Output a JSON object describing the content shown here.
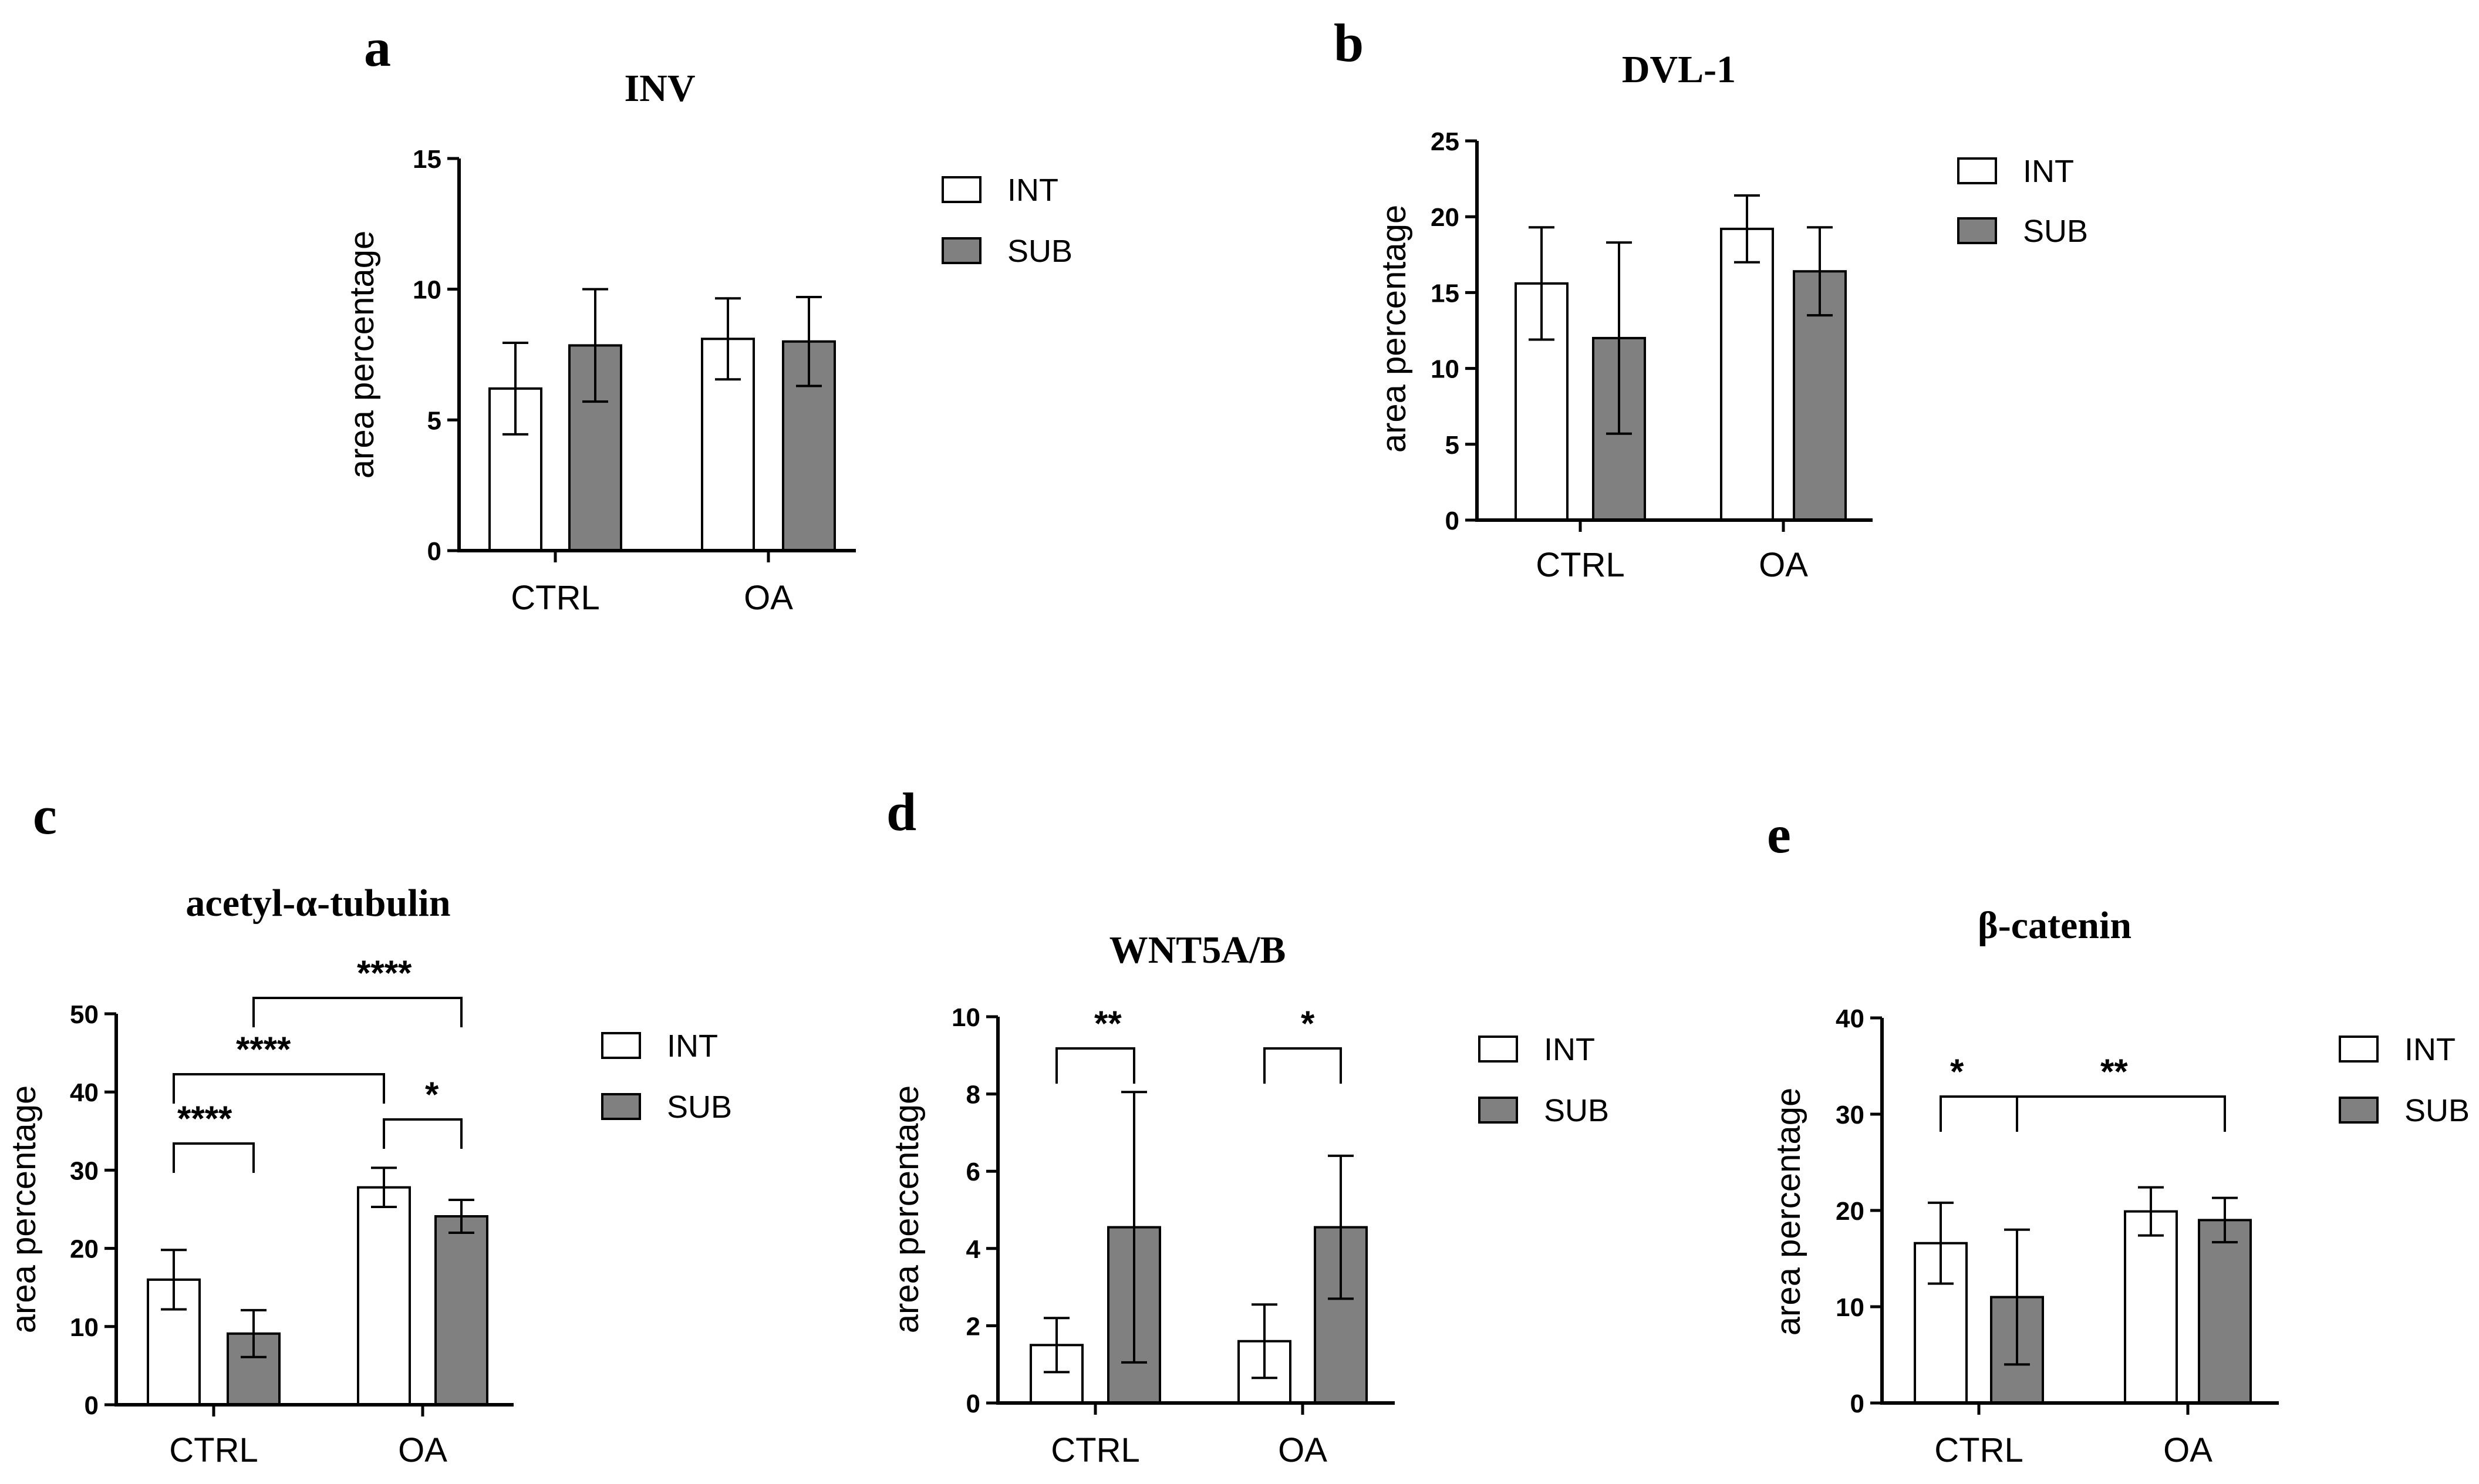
{
  "colors": {
    "int_fill": "#ffffff",
    "sub_fill": "#808080",
    "stroke": "#000000"
  },
  "chart_data": [
    {
      "panel": "a",
      "title": "INV",
      "type": "bar",
      "categories": [
        "CTRL",
        "OA"
      ],
      "series": [
        {
          "name": "INT",
          "values": [
            6.2,
            8.1
          ],
          "error": [
            1.75,
            1.55
          ]
        },
        {
          "name": "SUB",
          "values": [
            7.85,
            8.0
          ],
          "error": [
            2.15,
            1.7
          ]
        }
      ],
      "ylabel": "area percentage",
      "ylim": [
        0,
        15
      ],
      "yticks": [
        0,
        5,
        10,
        15
      ],
      "legend": "right",
      "significance": []
    },
    {
      "panel": "b",
      "title": "DVL-1",
      "type": "bar",
      "categories": [
        "CTRL",
        "OA"
      ],
      "series": [
        {
          "name": "INT",
          "values": [
            15.6,
            19.2
          ],
          "error": [
            3.7,
            2.2
          ]
        },
        {
          "name": "SUB",
          "values": [
            12.0,
            16.4
          ],
          "error": [
            6.3,
            2.9
          ]
        }
      ],
      "ylabel": "area percentage",
      "ylim": [
        0,
        25
      ],
      "yticks": [
        0,
        5,
        10,
        15,
        20,
        25
      ],
      "legend": "right",
      "significance": []
    },
    {
      "panel": "c",
      "title": "acetyl-α-tubulin",
      "type": "bar",
      "categories": [
        "CTRL",
        "OA"
      ],
      "series": [
        {
          "name": "INT",
          "values": [
            16.0,
            27.8
          ],
          "error": [
            3.8,
            2.5
          ]
        },
        {
          "name": "SUB",
          "values": [
            9.1,
            24.1
          ],
          "error": [
            3.0,
            2.1
          ]
        }
      ],
      "ylabel": "area percentage",
      "ylim": [
        0,
        50
      ],
      "yticks": [
        0,
        10,
        20,
        30,
        40,
        50
      ],
      "legend": "right",
      "significance": [
        {
          "from": [
            0,
            0
          ],
          "to": [
            0,
            1
          ],
          "label": "****"
        },
        {
          "from": [
            0,
            0
          ],
          "to": [
            1,
            0
          ],
          "label": "****"
        },
        {
          "from": [
            1,
            0
          ],
          "to": [
            1,
            1
          ],
          "label": "*"
        },
        {
          "from": [
            0,
            1
          ],
          "to": [
            1,
            1
          ],
          "label": "****"
        }
      ]
    },
    {
      "panel": "d",
      "title": "WNT5A/B",
      "type": "bar",
      "categories": [
        "CTRL",
        "OA"
      ],
      "series": [
        {
          "name": "INT",
          "values": [
            1.5,
            1.6
          ],
          "error": [
            0.7,
            0.95
          ]
        },
        {
          "name": "SUB",
          "values": [
            4.55,
            4.55
          ],
          "error": [
            3.5,
            1.85
          ]
        }
      ],
      "ylabel": "area percentage",
      "ylim": [
        0,
        10
      ],
      "yticks": [
        0,
        2,
        4,
        6,
        8,
        10
      ],
      "legend": "right",
      "significance": [
        {
          "from": [
            0,
            0
          ],
          "to": [
            0,
            1
          ],
          "label": "**"
        },
        {
          "from": [
            1,
            0
          ],
          "to": [
            1,
            1
          ],
          "label": "*"
        }
      ]
    },
    {
      "panel": "e",
      "title": "β-catenin",
      "type": "bar",
      "categories": [
        "CTRL",
        "OA"
      ],
      "series": [
        {
          "name": "INT",
          "values": [
            16.6,
            19.9
          ],
          "error": [
            4.2,
            2.5
          ]
        },
        {
          "name": "SUB",
          "values": [
            11.0,
            19.0
          ],
          "error": [
            7.0,
            2.3
          ]
        }
      ],
      "ylabel": "area percentage",
      "ylim": [
        0,
        40
      ],
      "yticks": [
        0,
        10,
        20,
        30,
        40
      ],
      "legend": "right",
      "significance": [
        {
          "from": [
            0,
            0
          ],
          "to": [
            0,
            1
          ],
          "label": "*"
        },
        {
          "from": [
            0,
            1
          ],
          "to": [
            1,
            1
          ],
          "label": "**"
        }
      ]
    }
  ]
}
